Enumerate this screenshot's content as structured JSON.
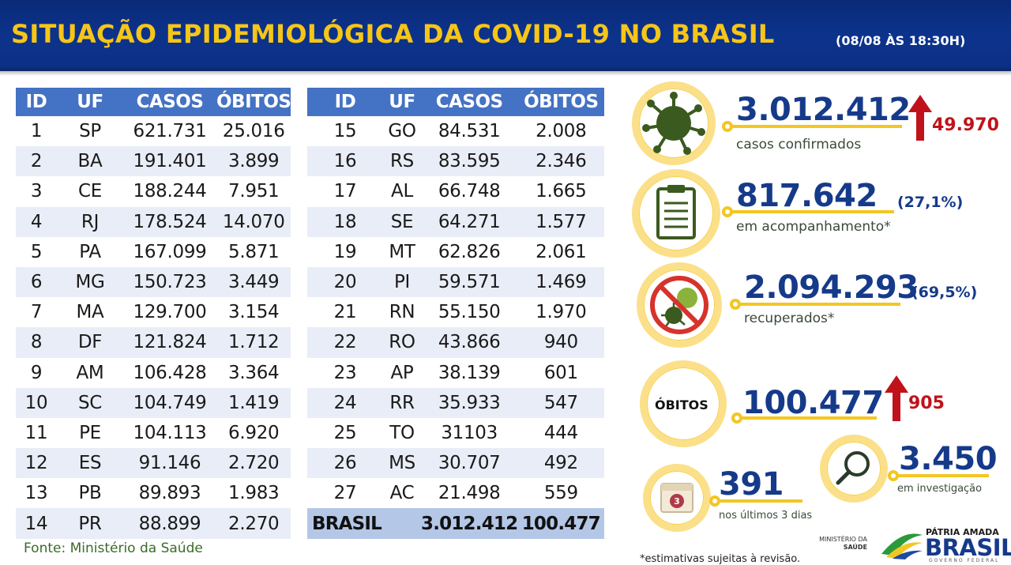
{
  "header": {
    "title": "SITUAÇÃO EPIDEMIOLÓGICA DA COVID-19 NO BRASIL",
    "subtitle": "(08/08 ÀS 18:30H)"
  },
  "table": {
    "columns": [
      "ID",
      "UF",
      "CASOS",
      "ÓBITOS"
    ],
    "left_rows": [
      {
        "id": "1",
        "uf": "SP",
        "casos": "621.731",
        "obitos": "25.016"
      },
      {
        "id": "2",
        "uf": "BA",
        "casos": "191.401",
        "obitos": "3.899"
      },
      {
        "id": "3",
        "uf": "CE",
        "casos": "188.244",
        "obitos": "7.951"
      },
      {
        "id": "4",
        "uf": "RJ",
        "casos": "178.524",
        "obitos": "14.070"
      },
      {
        "id": "5",
        "uf": "PA",
        "casos": "167.099",
        "obitos": "5.871"
      },
      {
        "id": "6",
        "uf": "MG",
        "casos": "150.723",
        "obitos": "3.449"
      },
      {
        "id": "7",
        "uf": "MA",
        "casos": "129.700",
        "obitos": "3.154"
      },
      {
        "id": "8",
        "uf": "DF",
        "casos": "121.824",
        "obitos": "1.712"
      },
      {
        "id": "9",
        "uf": "AM",
        "casos": "106.428",
        "obitos": "3.364"
      },
      {
        "id": "10",
        "uf": "SC",
        "casos": "104.749",
        "obitos": "1.419"
      },
      {
        "id": "11",
        "uf": "PE",
        "casos": "104.113",
        "obitos": "6.920"
      },
      {
        "id": "12",
        "uf": "ES",
        "casos": "91.146",
        "obitos": "2.720"
      },
      {
        "id": "13",
        "uf": "PB",
        "casos": "89.893",
        "obitos": "1.983"
      },
      {
        "id": "14",
        "uf": "PR",
        "casos": "88.899",
        "obitos": "2.270"
      }
    ],
    "right_rows": [
      {
        "id": "15",
        "uf": "GO",
        "casos": "84.531",
        "obitos": "2.008"
      },
      {
        "id": "16",
        "uf": "RS",
        "casos": "83.595",
        "obitos": "2.346"
      },
      {
        "id": "17",
        "uf": "AL",
        "casos": "66.748",
        "obitos": "1.665"
      },
      {
        "id": "18",
        "uf": "SE",
        "casos": "64.271",
        "obitos": "1.577"
      },
      {
        "id": "19",
        "uf": "MT",
        "casos": "62.826",
        "obitos": "2.061"
      },
      {
        "id": "20",
        "uf": "PI",
        "casos": "59.571",
        "obitos": "1.469"
      },
      {
        "id": "21",
        "uf": "RN",
        "casos": "55.150",
        "obitos": "1.970"
      },
      {
        "id": "22",
        "uf": "RO",
        "casos": "43.866",
        "obitos": "940"
      },
      {
        "id": "23",
        "uf": "AP",
        "casos": "38.139",
        "obitos": "601"
      },
      {
        "id": "24",
        "uf": "RR",
        "casos": "35.933",
        "obitos": "547"
      },
      {
        "id": "25",
        "uf": "TO",
        "casos": "31103",
        "obitos": "444"
      },
      {
        "id": "26",
        "uf": "MS",
        "casos": "30.707",
        "obitos": "492"
      },
      {
        "id": "27",
        "uf": "AC",
        "casos": "21.498",
        "obitos": "559"
      }
    ],
    "total": {
      "label": "BRASIL",
      "casos": "3.012.412",
      "obitos": "100.477"
    }
  },
  "source": "Fonte: Ministério da Saúde",
  "stats": {
    "confirmed": {
      "value": "3.012.412",
      "label": "casos confirmados",
      "delta": "49.970",
      "icon": "virus-icon"
    },
    "monitoring": {
      "value": "817.642",
      "label": "em acompanhamento*",
      "pct": "(27,1%)",
      "icon": "clipboard-icon"
    },
    "recovered": {
      "value": "2.094.293",
      "label": "recuperados*",
      "pct": "(69,5%)",
      "icon": "no-virus-icon"
    },
    "deaths": {
      "circle_label": "ÓBITOS",
      "value": "100.477",
      "delta": "905"
    },
    "investigation": {
      "value": "3.450",
      "label": "em investigação",
      "icon": "magnifier-icon"
    },
    "last3days": {
      "value": "391",
      "label": "nos últimos 3 dias",
      "icon": "calendar-icon",
      "icon_number": "3"
    }
  },
  "footnote": "*estimativas sujeitas à revisão.",
  "logos": {
    "ministry_line1": "MINISTÉRIO DA",
    "ministry_line2": "SAÚDE",
    "patria": "PÁTRIA AMADA",
    "brasil": "BRASIL",
    "governo": "GOVERNO FEDERAL"
  },
  "colors": {
    "header_bg": "#0c338c",
    "title": "#f6c518",
    "table_header": "#4472c4",
    "row_alt": "#e9edf7",
    "total_row": "#b4c7e7",
    "accent_yellow": "#f3c623",
    "number_blue": "#163a8a",
    "delta_red": "#c0121a",
    "virus_green": "#3b5a1f"
  }
}
